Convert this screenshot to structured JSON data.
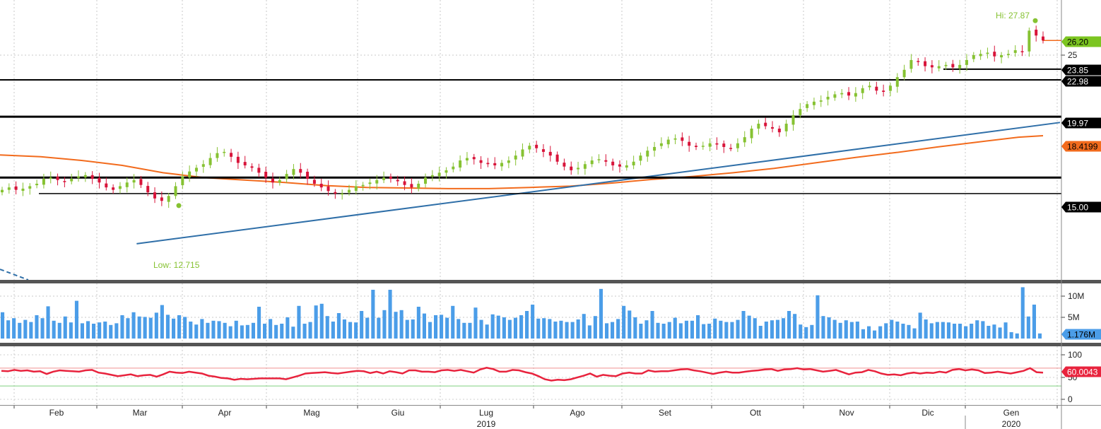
{
  "chart_data": [
    {
      "type": "candlestick",
      "panel": "price",
      "colors": {
        "up": "#86c232",
        "down": "#d8143a",
        "ma": "#f26b1d",
        "trend": "#2f6fa8",
        "level": "#000000",
        "last_badge": "#7cc521"
      },
      "y_ticks": [
        "25"
      ],
      "ylim": [
        9.6,
        28.9
      ],
      "annotations": {
        "high_label": "Hi: 27.87",
        "high_value": 27.87,
        "low_label": "Low: 12.715",
        "low_value": 12.715
      },
      "levels": [
        {
          "label": "23.85",
          "value": 23.85
        },
        {
          "label": "22.98",
          "value": 22.98
        },
        {
          "label": "19.97",
          "value": 19.97
        },
        {
          "label": "15.00",
          "value": 15.0
        }
      ],
      "support_line": {
        "value": 13.7
      },
      "last_price": {
        "label": "26.20",
        "value": 26.2
      },
      "moving_average": {
        "label": "18.4199",
        "value": 18.4199,
        "points": [
          [
            0,
            16.85
          ],
          [
            5,
            16.7
          ],
          [
            10,
            16.4
          ],
          [
            15,
            16.0
          ],
          [
            20,
            15.4
          ],
          [
            25,
            15.0
          ],
          [
            30,
            14.8
          ],
          [
            35,
            14.6
          ],
          [
            40,
            14.35
          ],
          [
            45,
            14.2
          ],
          [
            50,
            14.15
          ],
          [
            55,
            14.1
          ],
          [
            60,
            14.1
          ],
          [
            65,
            14.2
          ],
          [
            70,
            14.3
          ],
          [
            75,
            14.55
          ],
          [
            80,
            14.85
          ],
          [
            85,
            15.1
          ],
          [
            90,
            15.4
          ],
          [
            95,
            15.75
          ],
          [
            100,
            16.2
          ],
          [
            105,
            16.65
          ],
          [
            110,
            17.05
          ],
          [
            115,
            17.5
          ],
          [
            120,
            17.9
          ],
          [
            125,
            18.3
          ],
          [
            128,
            18.42
          ]
        ]
      },
      "trend_line": {
        "points": [
          [
            12,
            9.6
          ],
          [
            130,
            19.5
          ]
        ]
      },
      "dashed_segment": {
        "points": [
          [
            0,
            10.2
          ],
          [
            4,
            9.7
          ]
        ]
      },
      "price_series": [
        14.0,
        14.2,
        14.0,
        14.1,
        14.3,
        14.5,
        14.9,
        15.0,
        14.8,
        14.7,
        14.9,
        15.1,
        15.2,
        14.9,
        14.6,
        14.2,
        14.0,
        14.3,
        14.6,
        14.8,
        14.4,
        13.8,
        13.3,
        13.1,
        13.5,
        14.3,
        15.1,
        15.5,
        15.8,
        16.1,
        16.6,
        17.0,
        17.1,
        16.7,
        16.2,
        16.0,
        15.8,
        15.4,
        15.0,
        14.6,
        14.8,
        15.3,
        15.7,
        15.4,
        14.9,
        14.5,
        14.2,
        13.9,
        13.7,
        13.7,
        14.0,
        14.3,
        14.4,
        14.6,
        14.8,
        15.0,
        14.9,
        14.7,
        14.4,
        14.2,
        14.5,
        15.0,
        15.2,
        15.4,
        15.6,
        15.9,
        16.4,
        16.6,
        16.5,
        16.2,
        16.1,
        16.0,
        16.2,
        16.4,
        16.8,
        17.3,
        17.6,
        17.4,
        17.1,
        16.8,
        16.3,
        15.9,
        15.6,
        15.8,
        16.1,
        16.4,
        16.5,
        16.3,
        16.0,
        15.9,
        16.0,
        16.3,
        16.8,
        17.2,
        17.5,
        17.8,
        18.1,
        18.2,
        18.0,
        17.6,
        17.5,
        17.6,
        17.8,
        17.7,
        17.5,
        17.4,
        17.8,
        18.3,
        19.0,
        19.4,
        19.2,
        19.0,
        18.7,
        19.4,
        20.1,
        20.6,
        21.0,
        21.2,
        21.3,
        21.6,
        21.8,
        21.9,
        21.7,
        21.9,
        22.3,
        22.5,
        22.1,
        22.0,
        22.5,
        23.2,
        23.8,
        24.6,
        24.5,
        24.1,
        24.0,
        24.1,
        24.2,
        24.0,
        24.2,
        24.6,
        25.0,
        25.1,
        25.2,
        24.9,
        25.0,
        25.1,
        25.4,
        25.3,
        27.0,
        26.6,
        26.2
      ],
      "x_ticks": [
        "Feb",
        "Mar",
        "Apr",
        "Mag",
        "Giu",
        "Lug",
        "Ago",
        "Set",
        "Ott",
        "Nov",
        "Dic",
        "Gen"
      ],
      "year_labels": [
        {
          "label": "2019",
          "month_index": 5
        },
        {
          "label": "2020",
          "month_index": 11
        }
      ]
    },
    {
      "type": "bar",
      "panel": "volume",
      "color": "#4b9de8",
      "y_ticks": [
        "10M",
        "5M"
      ],
      "ylim": [
        0,
        13000000
      ],
      "last_value": {
        "label": "1.176M",
        "value": 1176000
      },
      "values": [
        6.2,
        4.3,
        4.8,
        3.7,
        4.4,
        3.9,
        5.5,
        4.8,
        7.6,
        4.2,
        3.7,
        5.2,
        3.8,
        8.9,
        3.6,
        4.1,
        3.5,
        3.8,
        4.0,
        3.2,
        3.6,
        5.5,
        4.8,
        6.2,
        5.2,
        5.1,
        4.9,
        6.1,
        7.9,
        5.6,
        4.7,
        5.5,
        5.1,
        4.0,
        3.3,
        4.6,
        3.7,
        4.2,
        4.1,
        3.7,
        2.9,
        4.2,
        3.1,
        3.2,
        3.7,
        7.5,
        3.5,
        4.6,
        3.2,
        3.5,
        5.0,
        2.8,
        7.7,
        3.5,
        3.9,
        7.8,
        8.2,
        5.3,
        4.0,
        6.0,
        4.5,
        3.9,
        3.8,
        6.5,
        4.9,
        11.5,
        4.9,
        6.7,
        11.5,
        6.3,
        6.7,
        4.4,
        4.5,
        7.5,
        5.9,
        3.9,
        5.5,
        5.6,
        4.9,
        7.7,
        4.6,
        3.7,
        3.7,
        7.3,
        4.4,
        3.3,
        5.7,
        5.4,
        5.0,
        4.4,
        4.9,
        5.5,
        6.5,
        8.0,
        4.7,
        4.8,
        4.6,
        4.0,
        4.2,
        3.9,
        3.9,
        4.5,
        5.8,
        3.1,
        5.3,
        11.7,
        3.6,
        3.9,
        4.6,
        7.7,
        6.6,
        5.0,
        3.5,
        4.3,
        6.5,
        3.7,
        3.5,
        3.9,
        4.9,
        3.6,
        4.2,
        4.2,
        5.5,
        3.4,
        3.5,
        4.7,
        4.2,
        3.9,
        3.9,
        4.4,
        6.5,
        5.4,
        4.8,
        3.0,
        4.0,
        4.3,
        4.4,
        4.8,
        6.5,
        5.8,
        3.3,
        2.7,
        3.2,
        10.2,
        5.3,
        5.0,
        4.4,
        3.7,
        4.3,
        3.9,
        4.0,
        2.2,
        2.9,
        1.9,
        2.9,
        3.6,
        4.4,
        4.0,
        3.5,
        3.2,
        2.4,
        6.1,
        4.5,
        3.6,
        3.9,
        3.9,
        3.8,
        3.5,
        3.5,
        2.9,
        3.5,
        4.3,
        4.1,
        3.0,
        3.3,
        2.6,
        3.8,
        1.5,
        1.2,
        12.1,
        5.2,
        8.0,
        1.2
      ]
    },
    {
      "type": "line",
      "panel": "rsi",
      "color": "#e8233d",
      "y_ticks": [
        "100",
        "50",
        "0"
      ],
      "ylim": [
        0,
        100
      ],
      "reference_lines": [
        {
          "value": 70,
          "color": "#f09090"
        },
        {
          "value": 30,
          "color": "#7fd07f"
        }
      ],
      "last_value": {
        "label": "60.0043",
        "value": 60.0043
      },
      "values": [
        64,
        63,
        66,
        64,
        65,
        62,
        63,
        57,
        62,
        65,
        64,
        63,
        62,
        65,
        66,
        60,
        58,
        55,
        52,
        54,
        56,
        52,
        54,
        55,
        51,
        56,
        62,
        60,
        59,
        62,
        60,
        58,
        53,
        51,
        48,
        47,
        44,
        46,
        45,
        46,
        47,
        47,
        47,
        47,
        45,
        49,
        53,
        58,
        59,
        60,
        61,
        59,
        58,
        60,
        62,
        64,
        63,
        59,
        62,
        58,
        63,
        61,
        58,
        65,
        65,
        62,
        62,
        61,
        65,
        66,
        64,
        66,
        63,
        60,
        67,
        71,
        68,
        62,
        62,
        66,
        65,
        61,
        58,
        52,
        45,
        42,
        44,
        43,
        45,
        49,
        53,
        58,
        51,
        55,
        53,
        52,
        58,
        60,
        58,
        58,
        65,
        62,
        63,
        63,
        65,
        67,
        68,
        65,
        63,
        60,
        57,
        60,
        62,
        60,
        60,
        62,
        64,
        65,
        67,
        68,
        64,
        67,
        68,
        70,
        67,
        68,
        65,
        62,
        64,
        66,
        61,
        56,
        60,
        61,
        66,
        63,
        58,
        55,
        56,
        54,
        58,
        60,
        58,
        60,
        59,
        62,
        60,
        66,
        68,
        65,
        67,
        65,
        59,
        60,
        62,
        60,
        58,
        61,
        64,
        70,
        61,
        60
      ]
    }
  ]
}
